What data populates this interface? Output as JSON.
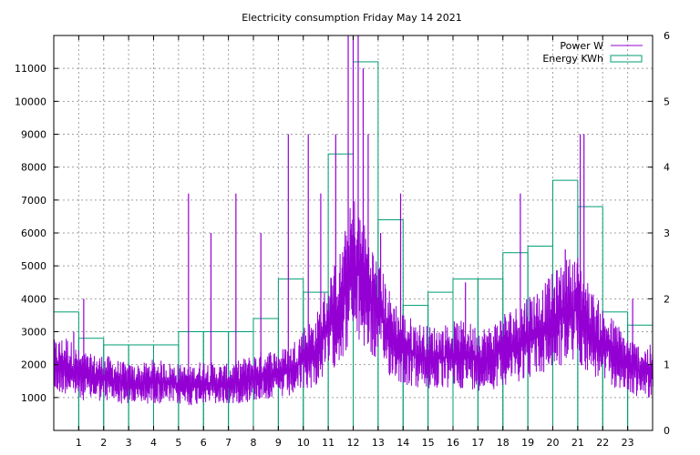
{
  "chart_data": {
    "type": "line",
    "title": "Electricity consumption Friday May 14 2021",
    "xlabel": "",
    "ylabel": "",
    "y2label": "",
    "grid": true,
    "legend_position": "top-right",
    "xlim": [
      0,
      24
    ],
    "ylim": [
      0,
      12000
    ],
    "y2lim": [
      0,
      6
    ],
    "x_ticks": [
      "1",
      "2",
      "3",
      "4",
      "5",
      "6",
      "7",
      "8",
      "9",
      "10",
      "11",
      "12",
      "13",
      "14",
      "15",
      "16",
      "17",
      "18",
      "19",
      "20",
      "21",
      "22",
      "23"
    ],
    "y_ticks": [
      "1000",
      "2000",
      "3000",
      "4000",
      "5000",
      "6000",
      "7000",
      "8000",
      "9000",
      "10000",
      "11000"
    ],
    "y2_ticks": [
      "0",
      "1",
      "2",
      "3",
      "4",
      "5",
      "6"
    ],
    "series": [
      {
        "name": "Power W",
        "kind": "line",
        "axis": "y",
        "color": "#9400d3",
        "x": [
          0,
          0.5,
          1,
          1.5,
          2,
          2.5,
          3,
          3.5,
          4,
          4.5,
          5,
          5.5,
          6,
          6.5,
          7,
          7.5,
          8,
          8.5,
          9,
          9.5,
          10,
          10.5,
          11,
          11.5,
          12,
          12.5,
          13,
          13.5,
          14,
          14.5,
          15,
          15.5,
          16,
          16.5,
          17,
          17.5,
          18,
          18.5,
          19,
          19.5,
          20,
          20.5,
          21,
          21.5,
          22,
          22.5,
          23,
          23.5,
          24
        ],
        "y": [
          1900,
          2000,
          1700,
          1600,
          1600,
          1500,
          1400,
          1400,
          1500,
          1450,
          1400,
          1350,
          1500,
          1400,
          1400,
          1500,
          1600,
          1700,
          1700,
          1800,
          2200,
          2400,
          3200,
          3800,
          5000,
          4300,
          3600,
          2900,
          2500,
          2300,
          2200,
          2200,
          2300,
          2300,
          2200,
          2200,
          2500,
          2600,
          2900,
          3000,
          3300,
          3600,
          3700,
          3000,
          2600,
          2300,
          2000,
          1800,
          1800
        ],
        "peaks": [
          {
            "x": 0.8,
            "y": 3000
          },
          {
            "x": 1.2,
            "y": 4000
          },
          {
            "x": 5.4,
            "y": 7200
          },
          {
            "x": 6.3,
            "y": 6000
          },
          {
            "x": 7.3,
            "y": 7200
          },
          {
            "x": 8.3,
            "y": 6000
          },
          {
            "x": 9.4,
            "y": 9000
          },
          {
            "x": 10.2,
            "y": 9000
          },
          {
            "x": 10.7,
            "y": 7200
          },
          {
            "x": 11.3,
            "y": 9000
          },
          {
            "x": 11.8,
            "y": 12000
          },
          {
            "x": 12.0,
            "y": 12000
          },
          {
            "x": 12.2,
            "y": 12000
          },
          {
            "x": 12.4,
            "y": 11000
          },
          {
            "x": 12.6,
            "y": 9000
          },
          {
            "x": 13.1,
            "y": 6000
          },
          {
            "x": 13.9,
            "y": 7200
          },
          {
            "x": 16.5,
            "y": 4500
          },
          {
            "x": 18.7,
            "y": 7200
          },
          {
            "x": 20.5,
            "y": 5500
          },
          {
            "x": 21.1,
            "y": 9000
          },
          {
            "x": 21.25,
            "y": 9000
          },
          {
            "x": 23.2,
            "y": 4000
          }
        ]
      },
      {
        "name": "Energy KWh",
        "kind": "steps",
        "axis": "y2",
        "color": "#009e73",
        "x": [
          0,
          1,
          2,
          3,
          4,
          5,
          6,
          7,
          8,
          9,
          10,
          11,
          12,
          13,
          14,
          15,
          16,
          17,
          18,
          19,
          20,
          21,
          22,
          23
        ],
        "y": [
          1.8,
          1.4,
          1.3,
          1.3,
          1.3,
          1.5,
          1.5,
          1.5,
          1.7,
          2.3,
          2.1,
          4.2,
          5.6,
          3.2,
          1.9,
          2.1,
          2.3,
          2.3,
          2.7,
          2.8,
          3.8,
          3.4,
          1.8,
          1.6
        ]
      }
    ]
  }
}
